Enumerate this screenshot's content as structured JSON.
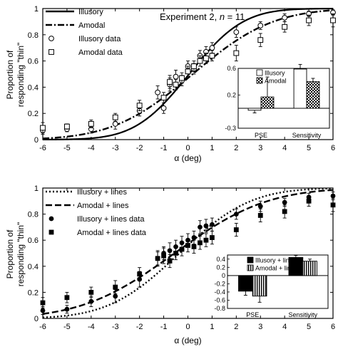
{
  "chart_data": [
    {
      "type": "scatter",
      "panel": "top",
      "annotation": "Experiment 2, n = 11",
      "annotation_prefix": "Experiment 2, ",
      "annotation_n": "n",
      "annotation_suffix": " = 11",
      "xlabel": "α (deg)",
      "ylabel_line1": "Proportion of",
      "ylabel_line2": "responding \"thin\"",
      "xlim": [
        -6,
        6
      ],
      "ylim": [
        0,
        1
      ],
      "x_ticks": [
        "-6",
        "-5",
        "-4",
        "-3",
        "-2",
        "-1",
        "0",
        "1",
        "2",
        "3",
        "4",
        "5",
        "6"
      ],
      "y_ticks": [
        "0",
        "0.2",
        "0.4",
        "0.6",
        "0.8",
        "1"
      ],
      "legend_position": "top-left",
      "legend": [
        {
          "label": "Illusory",
          "style": "solid-line"
        },
        {
          "label": "Amodal",
          "style": "dash-dot-line"
        },
        {
          "label": "Illusory data",
          "style": "open-circle"
        },
        {
          "label": "Amodal data",
          "style": "open-square"
        }
      ],
      "curves": [
        {
          "name": "Illusory",
          "style": "solid",
          "mu": 0.05,
          "sigma": 1.75
        },
        {
          "name": "Amodal",
          "style": "dashdot",
          "mu": 0.2,
          "sigma": 2.6
        }
      ],
      "series": [
        {
          "name": "Illusory data",
          "marker": "open-circle",
          "points": [
            {
              "x": -6,
              "y": 0.07,
              "err": 0.03
            },
            {
              "x": -5,
              "y": 0.08,
              "err": 0.02
            },
            {
              "x": -4,
              "y": 0.08,
              "err": 0.03
            },
            {
              "x": -3,
              "y": 0.12,
              "err": 0.04
            },
            {
              "x": -2,
              "y": 0.22,
              "err": 0.04
            },
            {
              "x": -1.25,
              "y": 0.36,
              "err": 0.05
            },
            {
              "x": -1,
              "y": 0.24,
              "err": 0.04
            },
            {
              "x": -0.75,
              "y": 0.42,
              "err": 0.05
            },
            {
              "x": -0.5,
              "y": 0.48,
              "err": 0.05
            },
            {
              "x": -0.25,
              "y": 0.45,
              "err": 0.04
            },
            {
              "x": 0,
              "y": 0.56,
              "err": 0.04
            },
            {
              "x": 0.25,
              "y": 0.54,
              "err": 0.04
            },
            {
              "x": 0.5,
              "y": 0.64,
              "err": 0.04
            },
            {
              "x": 0.75,
              "y": 0.67,
              "err": 0.04
            },
            {
              "x": 1,
              "y": 0.7,
              "err": 0.04
            },
            {
              "x": 2,
              "y": 0.82,
              "err": 0.04
            },
            {
              "x": 3,
              "y": 0.87,
              "err": 0.03
            },
            {
              "x": 4,
              "y": 0.93,
              "err": 0.03
            },
            {
              "x": 5,
              "y": 0.96,
              "err": 0.02
            },
            {
              "x": 6,
              "y": 0.97,
              "err": 0.02
            }
          ]
        },
        {
          "name": "Amodal data",
          "marker": "open-square",
          "points": [
            {
              "x": -6,
              "y": 0.09,
              "err": 0.04
            },
            {
              "x": -5,
              "y": 0.1,
              "err": 0.02
            },
            {
              "x": -4,
              "y": 0.12,
              "err": 0.03
            },
            {
              "x": -3,
              "y": 0.17,
              "err": 0.03
            },
            {
              "x": -2,
              "y": 0.26,
              "err": 0.04
            },
            {
              "x": -1,
              "y": 0.32,
              "err": 0.04
            },
            {
              "x": -0.75,
              "y": 0.44,
              "err": 0.05
            },
            {
              "x": -0.5,
              "y": 0.42,
              "err": 0.04
            },
            {
              "x": -0.25,
              "y": 0.47,
              "err": 0.04
            },
            {
              "x": 0,
              "y": 0.52,
              "err": 0.04
            },
            {
              "x": 0.25,
              "y": 0.56,
              "err": 0.04
            },
            {
              "x": 0.5,
              "y": 0.6,
              "err": 0.04
            },
            {
              "x": 0.75,
              "y": 0.62,
              "err": 0.04
            },
            {
              "x": 1,
              "y": 0.64,
              "err": 0.04
            },
            {
              "x": 2,
              "y": 0.66,
              "err": 0.06
            },
            {
              "x": 3,
              "y": 0.76,
              "err": 0.05
            },
            {
              "x": 4,
              "y": 0.86,
              "err": 0.04
            },
            {
              "x": 5,
              "y": 0.91,
              "err": 0.04
            },
            {
              "x": 6,
              "y": 0.91,
              "err": 0.05
            }
          ]
        }
      ],
      "inset": {
        "type": "bar",
        "categories": [
          "PSE",
          "Sensitivity"
        ],
        "ylim": [
          -0.3,
          0.6
        ],
        "y_ticks": [
          "0.6",
          "0.2",
          "-0.3"
        ],
        "y_tick_values": [
          0.6,
          0.2,
          -0.3
        ],
        "legend_position": "top-left",
        "series": [
          {
            "name": "Illusory",
            "fill": "white",
            "values": [
              -0.03,
              0.59
            ],
            "errors": [
              0.04,
              0.07
            ]
          },
          {
            "name": "Amodal",
            "fill": "checker",
            "values": [
              0.17,
              0.4
            ],
            "errors": [
              0.3,
              0.05
            ]
          }
        ]
      }
    },
    {
      "type": "scatter",
      "panel": "bottom",
      "xlabel": "α (deg)",
      "ylabel_line1": "Proportion of",
      "ylabel_line2": "responding \"thin\"",
      "xlim": [
        -6,
        6
      ],
      "ylim": [
        0,
        1
      ],
      "x_ticks": [
        "-6",
        "-5",
        "-4",
        "-3",
        "-2",
        "-1",
        "0",
        "1",
        "2",
        "3",
        "4",
        "5",
        "6"
      ],
      "y_ticks": [
        "0",
        "0.2",
        "0.4",
        "0.6",
        "0.8",
        "1"
      ],
      "legend_position": "top-left",
      "legend": [
        {
          "label": "Illusory + lines",
          "style": "dotted-line"
        },
        {
          "label": "Amodal + lines",
          "style": "dashed-line"
        },
        {
          "label": "Illusory + lines data",
          "style": "filled-circle"
        },
        {
          "label": "Amodal + lines data",
          "style": "filled-square"
        }
      ],
      "curves": [
        {
          "name": "Illusory + lines",
          "style": "dotted",
          "mu": -0.35,
          "sigma": 2.3
        },
        {
          "name": "Amodal + lines",
          "style": "dashed",
          "mu": -0.55,
          "sigma": 3.0
        }
      ],
      "series": [
        {
          "name": "Illusory + lines data",
          "marker": "filled-circle",
          "points": [
            {
              "x": -6,
              "y": 0.06,
              "err": 0.03
            },
            {
              "x": -5,
              "y": 0.07,
              "err": 0.03
            },
            {
              "x": -4,
              "y": 0.13,
              "err": 0.04
            },
            {
              "x": -3,
              "y": 0.17,
              "err": 0.05
            },
            {
              "x": -2,
              "y": 0.3,
              "err": 0.06
            },
            {
              "x": -1.25,
              "y": 0.46,
              "err": 0.06
            },
            {
              "x": -1,
              "y": 0.5,
              "err": 0.05
            },
            {
              "x": -0.75,
              "y": 0.52,
              "err": 0.06
            },
            {
              "x": -0.5,
              "y": 0.55,
              "err": 0.05
            },
            {
              "x": -0.25,
              "y": 0.58,
              "err": 0.05
            },
            {
              "x": 0,
              "y": 0.6,
              "err": 0.05
            },
            {
              "x": 0.25,
              "y": 0.62,
              "err": 0.05
            },
            {
              "x": 0.5,
              "y": 0.7,
              "err": 0.05
            },
            {
              "x": 0.75,
              "y": 0.71,
              "err": 0.05
            },
            {
              "x": 1,
              "y": 0.72,
              "err": 0.05
            },
            {
              "x": 2,
              "y": 0.8,
              "err": 0.04
            },
            {
              "x": 3,
              "y": 0.86,
              "err": 0.04
            },
            {
              "x": 4,
              "y": 0.89,
              "err": 0.03
            },
            {
              "x": 5,
              "y": 0.93,
              "err": 0.03
            },
            {
              "x": 6,
              "y": 0.94,
              "err": 0.03
            }
          ]
        },
        {
          "name": "Amodal + lines data",
          "marker": "filled-square",
          "points": [
            {
              "x": -6,
              "y": 0.12,
              "err": 0.04
            },
            {
              "x": -5,
              "y": 0.16,
              "err": 0.04
            },
            {
              "x": -4,
              "y": 0.2,
              "err": 0.04
            },
            {
              "x": -3,
              "y": 0.24,
              "err": 0.05
            },
            {
              "x": -2,
              "y": 0.34,
              "err": 0.05
            },
            {
              "x": -1.25,
              "y": 0.46,
              "err": 0.05
            },
            {
              "x": -1,
              "y": 0.48,
              "err": 0.06
            },
            {
              "x": -0.75,
              "y": 0.44,
              "err": 0.05
            },
            {
              "x": -0.5,
              "y": 0.5,
              "err": 0.05
            },
            {
              "x": -0.25,
              "y": 0.53,
              "err": 0.05
            },
            {
              "x": 0,
              "y": 0.56,
              "err": 0.05
            },
            {
              "x": 0.25,
              "y": 0.55,
              "err": 0.05
            },
            {
              "x": 0.5,
              "y": 0.58,
              "err": 0.05
            },
            {
              "x": 0.75,
              "y": 0.6,
              "err": 0.05
            },
            {
              "x": 1,
              "y": 0.62,
              "err": 0.05
            },
            {
              "x": 2,
              "y": 0.68,
              "err": 0.05
            },
            {
              "x": 3,
              "y": 0.79,
              "err": 0.05
            },
            {
              "x": 4,
              "y": 0.82,
              "err": 0.05
            },
            {
              "x": 5,
              "y": 0.9,
              "err": 0.04
            },
            {
              "x": 6,
              "y": 0.87,
              "err": 0.05
            }
          ]
        }
      ],
      "inset": {
        "type": "bar",
        "categories": [
          "PSE",
          "Sensitivity"
        ],
        "ylim": [
          -0.8,
          0.5
        ],
        "y_ticks": [
          "0.4",
          "0.2",
          "0",
          "-0.2",
          "-0.4",
          "-0.6",
          "-0.8"
        ],
        "y_tick_values": [
          0.4,
          0.2,
          0,
          -0.2,
          -0.4,
          -0.6,
          -0.8
        ],
        "legend_position": "top-left",
        "series": [
          {
            "name": "Illusory + lines",
            "fill": "black",
            "values": [
              -0.38,
              0.44
            ],
            "errors": [
              0.1,
              0.05
            ]
          },
          {
            "name": "Amodal + lines",
            "fill": "vertical-stripes",
            "values": [
              -0.5,
              0.35
            ],
            "errors": [
              0.15,
              0.05
            ]
          }
        ]
      }
    }
  ]
}
